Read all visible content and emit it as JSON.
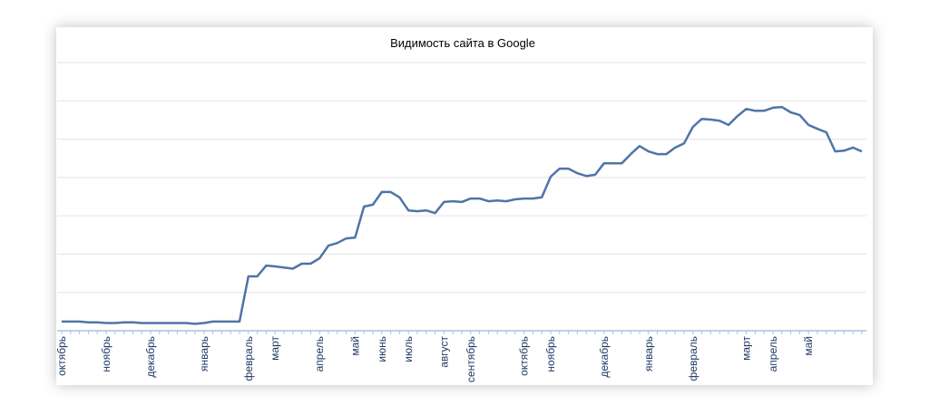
{
  "chart_data": {
    "type": "line",
    "title": "Видимость сайта в Google",
    "categories": [
      "октябрь",
      null,
      null,
      null,
      null,
      "ноябрь",
      null,
      null,
      null,
      null,
      "декабрь",
      null,
      null,
      null,
      null,
      null,
      "январь",
      null,
      null,
      null,
      null,
      "февраль",
      null,
      null,
      "март",
      null,
      null,
      null,
      null,
      "апрель",
      null,
      null,
      null,
      "май",
      null,
      null,
      "июнь",
      null,
      null,
      "июль",
      null,
      null,
      null,
      "август",
      null,
      null,
      "сентябрь",
      null,
      null,
      null,
      null,
      null,
      "октябрь",
      null,
      null,
      "ноябрь",
      null,
      null,
      null,
      null,
      null,
      "декабрь",
      null,
      null,
      null,
      null,
      "январь",
      null,
      null,
      null,
      null,
      "февраль",
      null,
      null,
      null,
      null,
      null,
      "март",
      null,
      null,
      "апрель",
      null,
      null,
      null,
      "май",
      null,
      null,
      null,
      null,
      null,
      null
    ],
    "values": [
      0.24,
      0.24,
      0.24,
      0.22,
      0.22,
      0.2,
      0.2,
      0.22,
      0.22,
      0.2,
      0.2,
      0.2,
      0.2,
      0.2,
      0.2,
      0.18,
      0.2,
      0.24,
      0.24,
      0.24,
      0.24,
      1.42,
      1.42,
      1.7,
      1.68,
      1.65,
      1.62,
      1.75,
      1.75,
      1.89,
      2.22,
      2.29,
      2.41,
      2.43,
      3.24,
      3.29,
      3.62,
      3.62,
      3.48,
      3.14,
      3.12,
      3.14,
      3.07,
      3.36,
      3.38,
      3.36,
      3.45,
      3.45,
      3.38,
      3.4,
      3.38,
      3.43,
      3.45,
      3.45,
      3.48,
      4.02,
      4.23,
      4.23,
      4.11,
      4.04,
      4.07,
      4.37,
      4.37,
      4.37,
      4.61,
      4.82,
      4.68,
      4.61,
      4.61,
      4.78,
      4.89,
      5.32,
      5.53,
      5.51,
      5.48,
      5.37,
      5.6,
      5.79,
      5.74,
      5.74,
      5.82,
      5.84,
      5.7,
      5.63,
      5.37,
      5.27,
      5.18,
      4.68,
      4.7,
      4.78,
      4.68
    ],
    "color": "#4f74a8",
    "ylim": [
      0,
      7
    ],
    "ygrid": [
      1,
      2,
      3,
      4,
      5,
      6,
      7
    ],
    "grid": true
  }
}
